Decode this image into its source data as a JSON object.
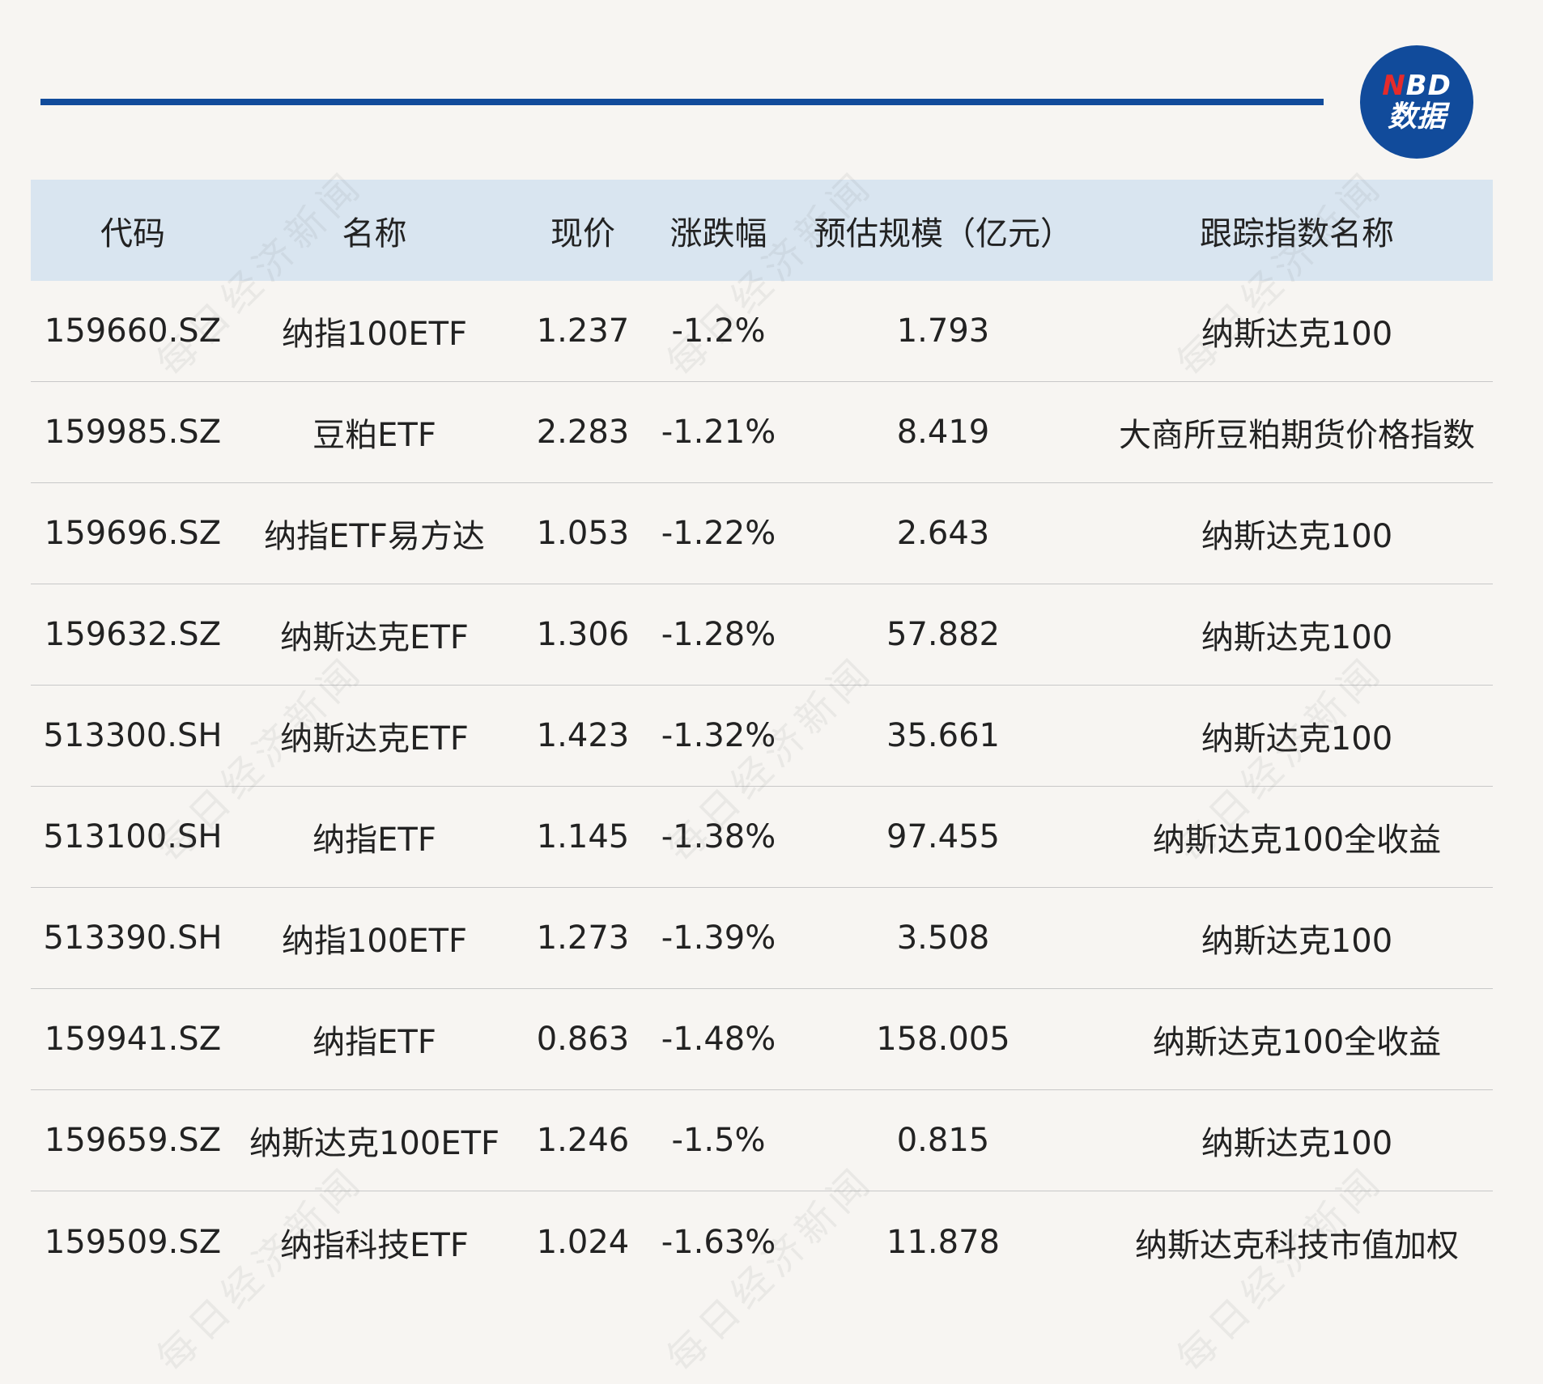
{
  "logo": {
    "line1_first": "N",
    "line1_rest": "BD",
    "line2": "数据"
  },
  "table": {
    "headers": [
      "代码",
      "名称",
      "现价",
      "涨跌幅",
      "预估规模（亿元）",
      "跟踪指数名称"
    ],
    "rows": [
      [
        "159660.SZ",
        "纳指100ETF",
        "1.237",
        "-1.2%",
        "1.793",
        "纳斯达克100"
      ],
      [
        "159985.SZ",
        "豆粕ETF",
        "2.283",
        "-1.21%",
        "8.419",
        "大商所豆粕期货价格指数"
      ],
      [
        "159696.SZ",
        "纳指ETF易方达",
        "1.053",
        "-1.22%",
        "2.643",
        "纳斯达克100"
      ],
      [
        "159632.SZ",
        "纳斯达克ETF",
        "1.306",
        "-1.28%",
        "57.882",
        "纳斯达克100"
      ],
      [
        "513300.SH",
        "纳斯达克ETF",
        "1.423",
        "-1.32%",
        "35.661",
        "纳斯达克100"
      ],
      [
        "513100.SH",
        "纳指ETF",
        "1.145",
        "-1.38%",
        "97.455",
        "纳斯达克100全收益"
      ],
      [
        "513390.SH",
        "纳指100ETF",
        "1.273",
        "-1.39%",
        "3.508",
        "纳斯达克100"
      ],
      [
        "159941.SZ",
        "纳指ETF",
        "0.863",
        "-1.48%",
        "158.005",
        "纳斯达克100全收益"
      ],
      [
        "159659.SZ",
        "纳斯达克100ETF",
        "1.246",
        "-1.5%",
        "0.815",
        "纳斯达克100"
      ],
      [
        "159509.SZ",
        "纳指科技ETF",
        "1.024",
        "-1.63%",
        "11.878",
        "纳斯达克科技市值加权"
      ]
    ]
  },
  "watermark": "每日经济新闻"
}
